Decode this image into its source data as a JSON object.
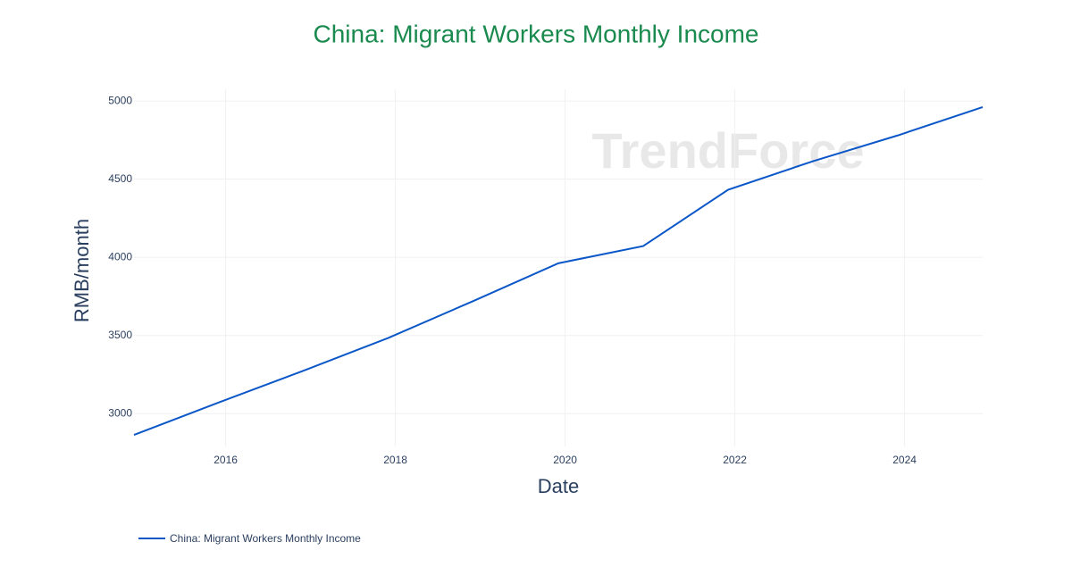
{
  "chart_data": {
    "type": "line",
    "title": "China: Migrant Workers Monthly Income",
    "watermark": "TrendForce",
    "x_label": "Date",
    "y_label": "RMB/month",
    "x": [
      2014.92,
      2015.92,
      2016.92,
      2017.92,
      2018.92,
      2019.92,
      2020.92,
      2021.92,
      2022.92,
      2023.92,
      2024.92
    ],
    "series": [
      {
        "name": "China: Migrant Workers Monthly Income",
        "color": "#0b57c8",
        "values": [
          2864,
          3072,
          3275,
          3485,
          3721,
          3962,
          4072,
          4432,
          4615,
          4780,
          4961
        ]
      }
    ],
    "xlim": [
      2014.92,
      2024.92
    ],
    "xticks": [
      2016,
      2018,
      2020,
      2022,
      2024
    ],
    "ylim": [
      2790,
      5075
    ],
    "yticks": [
      3000,
      3500,
      4000,
      4500,
      5000
    ],
    "grid": true,
    "legend": "bottom-left"
  }
}
